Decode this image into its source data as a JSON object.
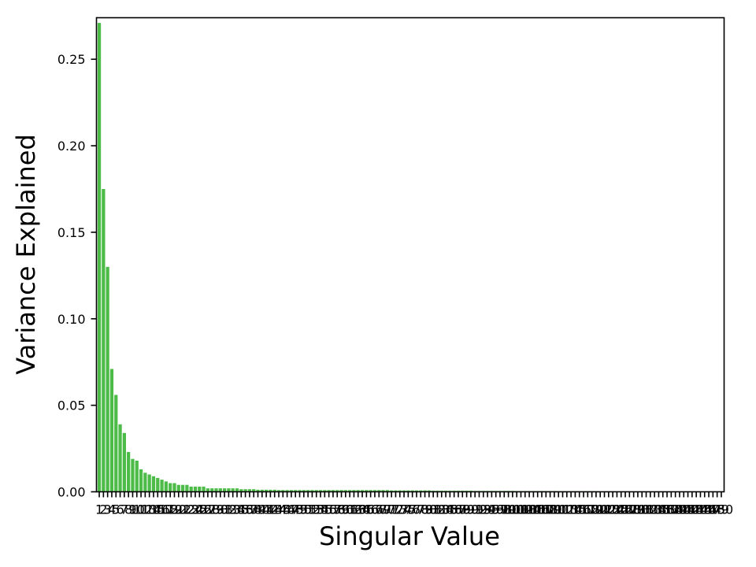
{
  "chart_data": {
    "type": "bar",
    "title": "",
    "xlabel": "Singular Value",
    "ylabel": "Variance Explained",
    "ylim": [
      0,
      0.274
    ],
    "grid": false,
    "legend": "none",
    "bar_color": "#4cbb47",
    "y_ticks": [
      "0.00",
      "0.05",
      "0.10",
      "0.15",
      "0.20",
      "0.25"
    ],
    "x_tick_first": "1",
    "x_tick_last": "150",
    "x_tick_step": 1,
    "values": [
      0.271,
      0.175,
      0.13,
      0.071,
      0.056,
      0.039,
      0.034,
      0.023,
      0.019,
      0.018,
      0.013,
      0.011,
      0.01,
      0.009,
      0.008,
      0.007,
      0.006,
      0.005,
      0.005,
      0.004,
      0.004,
      0.004,
      0.003,
      0.003,
      0.003,
      0.003,
      0.002,
      0.002,
      0.002,
      0.002,
      0.002,
      0.002,
      0.002,
      0.002,
      0.0015,
      0.0015,
      0.0015,
      0.0015,
      0.0012,
      0.0012,
      0.0012,
      0.0012,
      0.0012,
      0.001,
      0.001,
      0.001,
      0.001,
      0.001,
      0.001,
      0.001,
      0.001,
      0.001,
      0.001,
      0.001,
      0.001,
      0.001,
      0.001,
      0.001,
      0.001,
      0.001,
      0.001,
      0.001,
      0.001,
      0.001,
      0.001,
      0.001,
      0.001,
      0.001,
      0.001,
      0.001,
      0.0008,
      0.0008,
      0.0008,
      0.0008,
      0.0008,
      0.0008,
      0.0008,
      0.0008,
      0.0008,
      0.0008,
      0.0006,
      0.0006,
      0.0006,
      0.0006,
      0.0006,
      0.0006,
      0.0006,
      0.0006,
      0.0006,
      0.0006,
      0.0005,
      0.0005,
      0.0005,
      0.0005,
      0.0005,
      0.0005,
      0.0005,
      0.0005,
      0.0005,
      0.0005,
      0.0004,
      0.0004,
      0.0004,
      0.0004,
      0.0004,
      0.0004,
      0.0004,
      0.0004,
      0.0004,
      0.0004,
      0.0003,
      0.0003,
      0.0003,
      0.0003,
      0.0003,
      0.0003,
      0.0003,
      0.0003,
      0.0003,
      0.0003,
      0.0002,
      0.0002,
      0.0002,
      0.0002,
      0.0002,
      0.0002,
      0.0002,
      0.0002,
      0.0002,
      0.0002,
      0.0001,
      0.0001,
      0.0001,
      0.0001,
      0.0001,
      0.0001,
      0.0001,
      0.0001,
      0.0001,
      0.0001,
      0.0001,
      0.0001,
      0.0001,
      0.0001,
      0.0001,
      0.0001,
      0.0001,
      0.0001,
      0.0001,
      0.0001
    ]
  }
}
